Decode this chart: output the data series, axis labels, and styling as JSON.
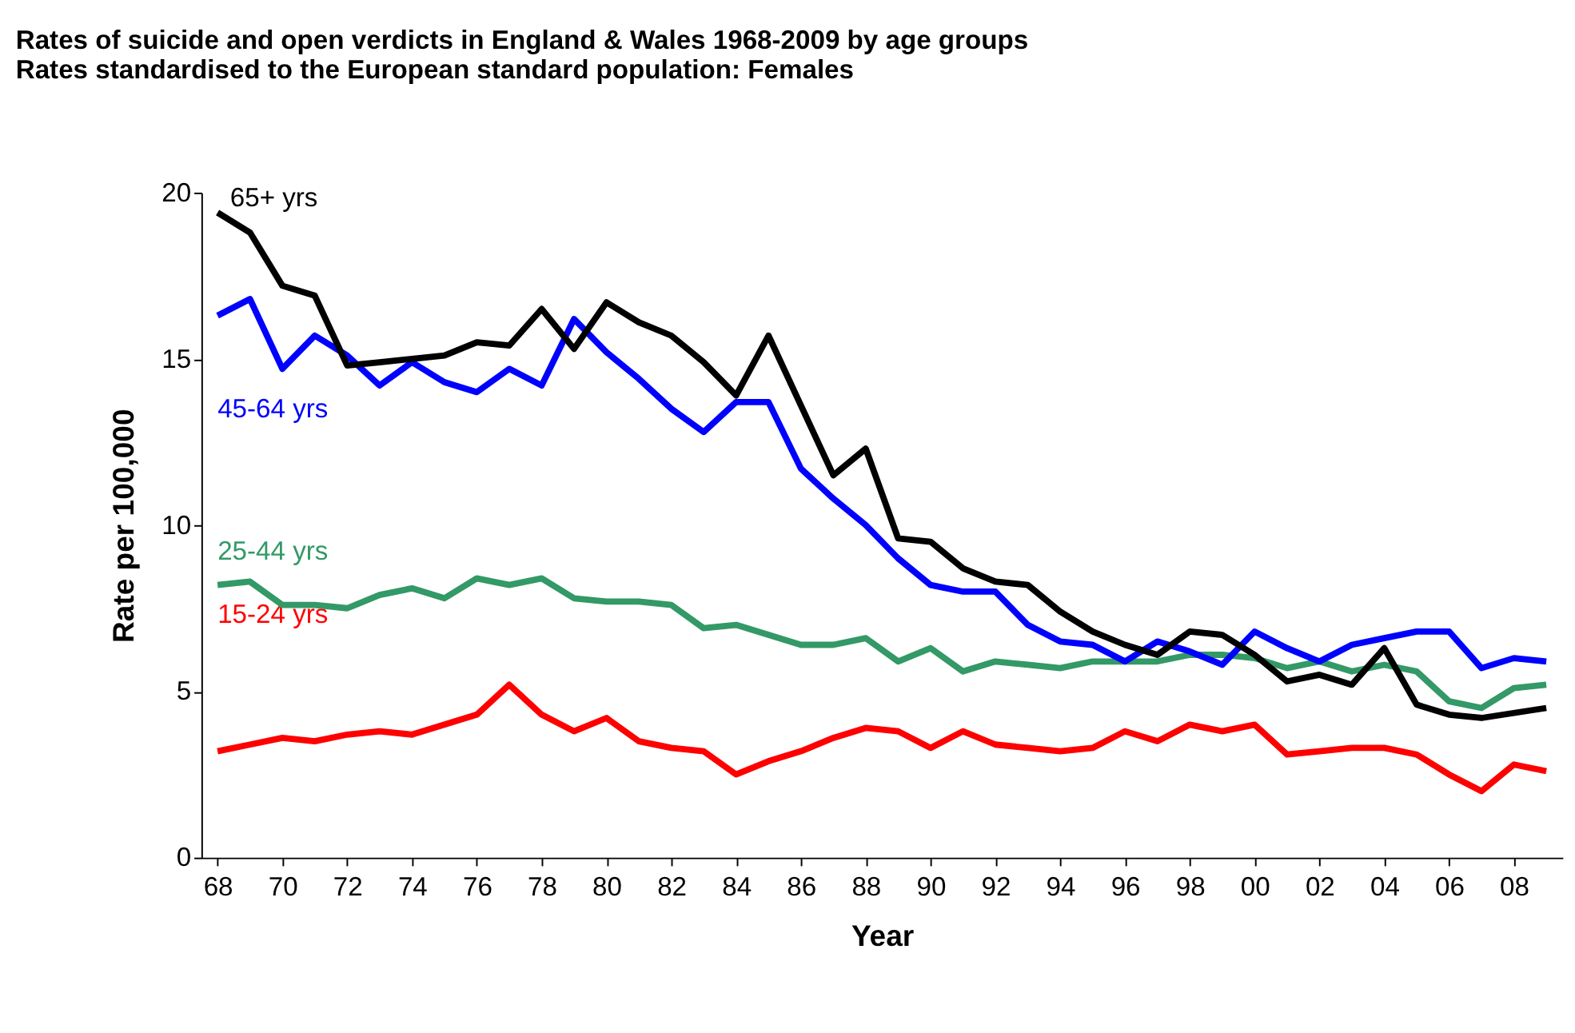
{
  "chart_data": {
    "type": "line",
    "title": "Rates of suicide and open verdicts in England & Wales 1968-2009 by age groups",
    "subtitle": "Rates standardised to the European standard population: Females",
    "xlabel": "Year",
    "ylabel": "Rate per 100,000",
    "x": [
      1968,
      1969,
      1970,
      1971,
      1972,
      1973,
      1974,
      1975,
      1976,
      1977,
      1978,
      1979,
      1980,
      1981,
      1982,
      1983,
      1984,
      1985,
      1986,
      1987,
      1988,
      1989,
      1990,
      1991,
      1992,
      1993,
      1994,
      1995,
      1996,
      1997,
      1998,
      1999,
      2000,
      2001,
      2002,
      2003,
      2004,
      2005,
      2006,
      2007,
      2008,
      2009
    ],
    "series": [
      {
        "name": "15-24 yrs",
        "color": "#ff0000",
        "values": [
          3.2,
          3.4,
          3.6,
          3.5,
          3.7,
          3.8,
          3.7,
          4.0,
          4.3,
          5.2,
          4.3,
          3.8,
          4.2,
          3.5,
          3.3,
          3.2,
          2.5,
          2.9,
          3.2,
          3.6,
          3.9,
          3.8,
          3.3,
          3.8,
          3.4,
          3.3,
          3.2,
          3.3,
          3.8,
          3.5,
          4.0,
          3.8,
          4.0,
          3.1,
          3.2,
          3.3,
          3.3,
          3.1,
          2.5,
          2.0,
          2.8,
          2.6
        ]
      },
      {
        "name": "25-44 yrs",
        "color": "#339966",
        "values": [
          8.2,
          8.3,
          7.6,
          7.6,
          7.5,
          7.9,
          8.1,
          7.8,
          8.4,
          8.2,
          8.4,
          7.8,
          7.7,
          7.7,
          7.6,
          6.9,
          7.0,
          6.7,
          6.4,
          6.4,
          6.6,
          5.9,
          6.3,
          5.6,
          5.9,
          5.8,
          5.7,
          5.9,
          5.9,
          5.9,
          6.1,
          6.1,
          6.0,
          5.7,
          5.9,
          5.6,
          5.8,
          5.6,
          4.7,
          4.5,
          5.1,
          5.2
        ]
      },
      {
        "name": "45-64 yrs",
        "color": "#0000ff",
        "values": [
          16.3,
          16.8,
          14.7,
          15.7,
          15.1,
          14.2,
          14.9,
          14.3,
          14.0,
          14.7,
          14.2,
          16.2,
          15.2,
          14.4,
          13.5,
          12.8,
          13.7,
          13.7,
          11.7,
          10.8,
          10.0,
          9.0,
          8.2,
          8.0,
          8.0,
          7.0,
          6.5,
          6.4,
          5.9,
          6.5,
          6.2,
          5.8,
          6.8,
          6.3,
          5.9,
          6.4,
          6.6,
          6.8,
          6.8,
          5.7,
          6.0,
          5.9
        ]
      },
      {
        "name": "65+ yrs",
        "color": "#000000",
        "values": [
          19.4,
          18.8,
          17.2,
          16.9,
          14.8,
          14.9,
          15.0,
          15.1,
          15.5,
          15.4,
          16.5,
          15.3,
          16.7,
          16.1,
          15.7,
          14.9,
          13.9,
          15.7,
          13.6,
          11.5,
          12.3,
          9.6,
          9.5,
          8.7,
          8.3,
          8.2,
          7.4,
          6.8,
          6.4,
          6.1,
          6.8,
          6.7,
          6.1,
          5.3,
          5.5,
          5.2,
          6.3,
          4.6,
          4.3,
          4.2,
          4.35,
          4.5
        ]
      }
    ],
    "xlim": [
      1967.5,
      2009.5
    ],
    "xticks": [
      {
        "value": 1968,
        "label": "68"
      },
      {
        "value": 1970,
        "label": "70"
      },
      {
        "value": 1972,
        "label": "72"
      },
      {
        "value": 1974,
        "label": "74"
      },
      {
        "value": 1976,
        "label": "76"
      },
      {
        "value": 1978,
        "label": "78"
      },
      {
        "value": 1980,
        "label": "80"
      },
      {
        "value": 1982,
        "label": "82"
      },
      {
        "value": 1984,
        "label": "84"
      },
      {
        "value": 1986,
        "label": "86"
      },
      {
        "value": 1988,
        "label": "88"
      },
      {
        "value": 1990,
        "label": "90"
      },
      {
        "value": 1992,
        "label": "92"
      },
      {
        "value": 1994,
        "label": "94"
      },
      {
        "value": 1996,
        "label": "96"
      },
      {
        "value": 1998,
        "label": "98"
      },
      {
        "value": 2000,
        "label": "00"
      },
      {
        "value": 2002,
        "label": "02"
      },
      {
        "value": 2004,
        "label": "04"
      },
      {
        "value": 2006,
        "label": "06"
      },
      {
        "value": 2008,
        "label": "08"
      }
    ],
    "ylim": [
      0,
      20
    ],
    "yticks": [
      0,
      5,
      10,
      15,
      20
    ],
    "grid": false,
    "legend": false,
    "marker": "none",
    "line_style": "solid"
  }
}
